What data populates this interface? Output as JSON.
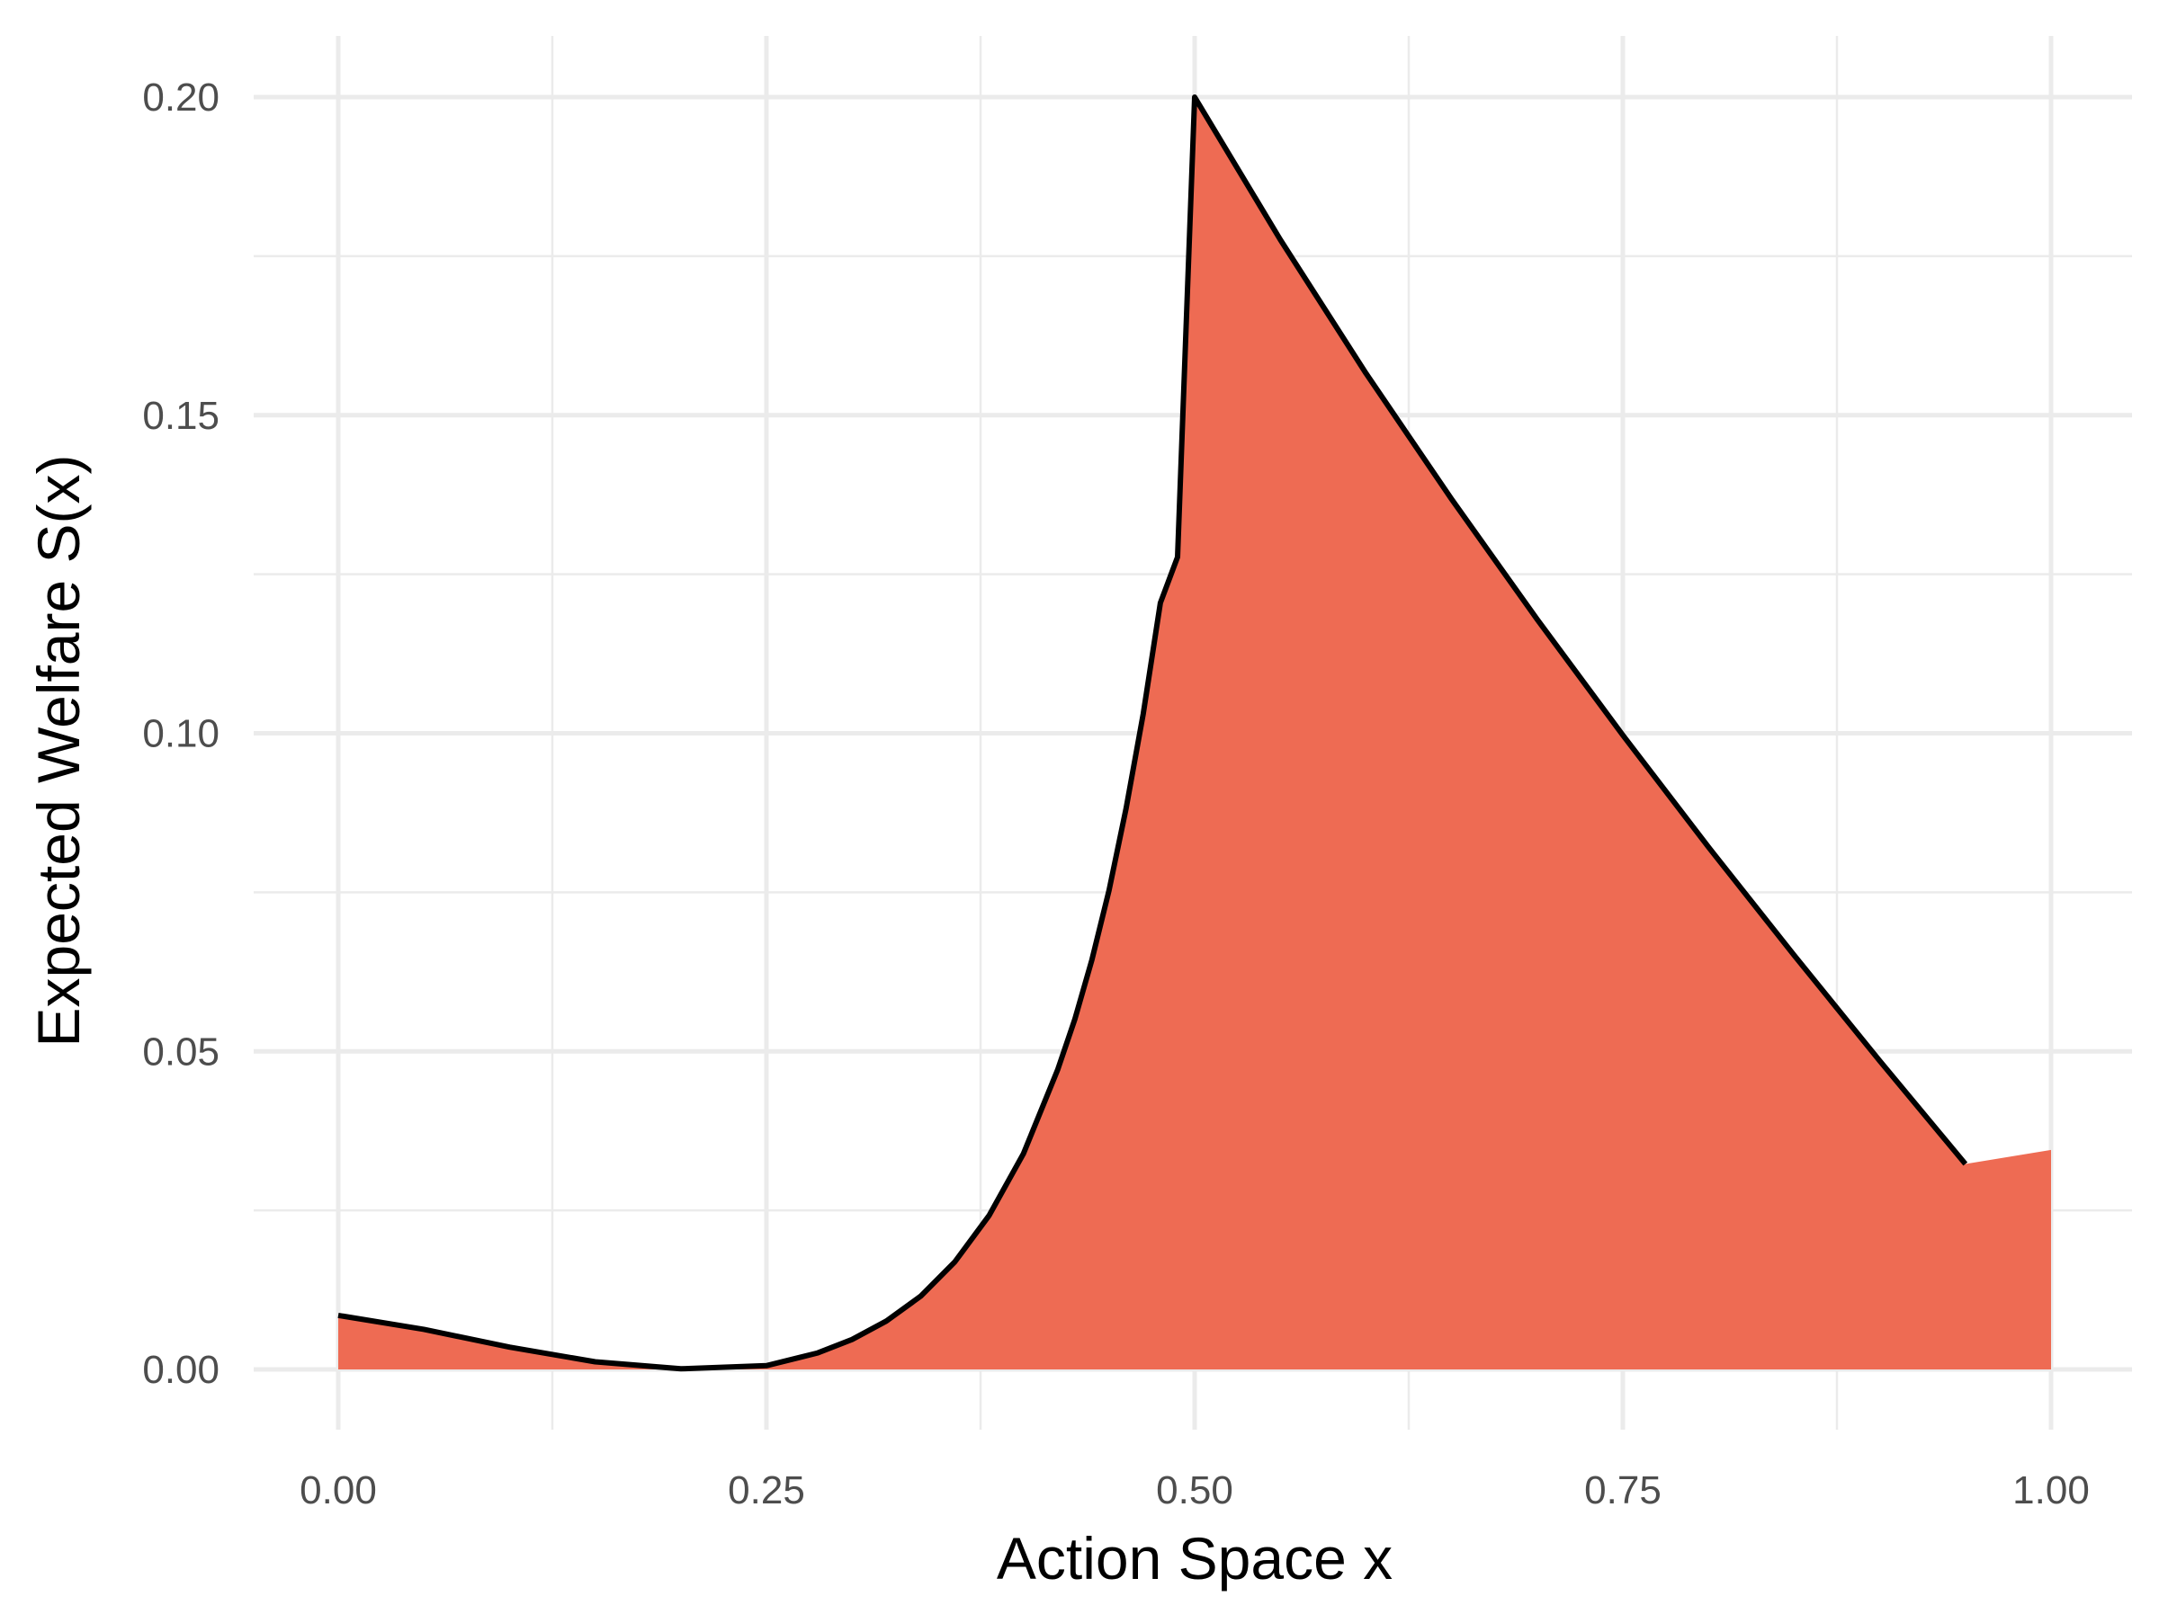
{
  "chart_data": {
    "type": "area",
    "title": "",
    "xlabel": "Action Space x",
    "ylabel": "Expected Welfare S(x)",
    "xlim": [
      0,
      1
    ],
    "ylim": [
      0,
      0.2
    ],
    "x_ticks": [
      0,
      0.25,
      0.5,
      0.75,
      1
    ],
    "x_tick_labels": [
      "0.00",
      "0.25",
      "0.50",
      "0.75",
      "1.00"
    ],
    "y_ticks": [
      0,
      0.05,
      0.1,
      0.15,
      0.2
    ],
    "y_tick_labels": [
      "0.00",
      "0.05",
      "0.10",
      "0.15",
      "0.20"
    ],
    "grid": true,
    "legend": "none",
    "fill_color": "#ee6b53",
    "line_color": "#000000",
    "series": [
      {
        "x": [
          0,
          0.05,
          0.1,
          0.15,
          0.2,
          0.25,
          0.28,
          0.3,
          0.32,
          0.34,
          0.36,
          0.38,
          0.4,
          0.42,
          0.43,
          0.44,
          0.45,
          0.46,
          0.47,
          0.48,
          0.49,
          0.5,
          0.55,
          0.6,
          0.65,
          0.7,
          0.75,
          0.8,
          0.85,
          0.9,
          0.95,
          1.0
        ],
        "y": [
          0.0085,
          0.0063,
          0.0035,
          0.0012,
          0.0001,
          0.0006,
          0.0026,
          0.0047,
          0.0076,
          0.0115,
          0.0169,
          0.0242,
          0.0339,
          0.0471,
          0.055,
          0.0644,
          0.0753,
          0.0882,
          0.1031,
          0.1205,
          0.1277,
          0.2,
          0.1776,
          0.1566,
          0.1368,
          0.1179,
          0.0997,
          0.0821,
          0.0651,
          0.0485,
          0.0323,
          0.0345
        ]
      }
    ]
  }
}
